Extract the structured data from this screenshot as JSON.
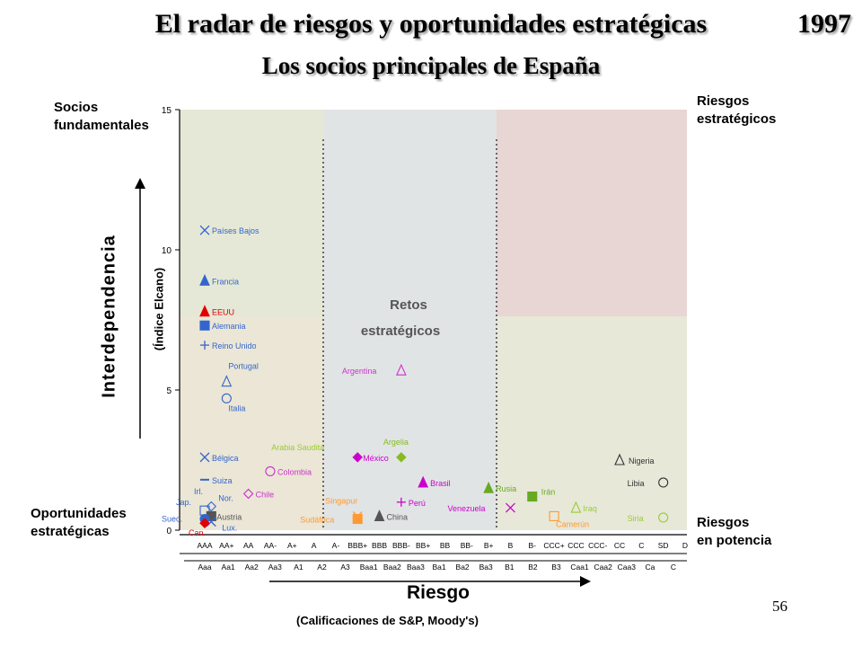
{
  "header": {
    "title": "El radar de riesgos y oportunidades estratégicas",
    "year": "1997",
    "subtitle": "Los socios principales de España"
  },
  "quadrants": {
    "top_left": "Socios\nfundamentales",
    "bottom_left": "Oportunidades\nestratégicas",
    "top_right": "Riesgos\nestratégicos",
    "bottom_right": "Riesgos\nen potencia",
    "center_line1": "Retos",
    "center_line2": "estratégicos"
  },
  "axes": {
    "y_label": "Interdependencia",
    "y_sublabel": "(Índice Elcano)",
    "x_label": "Riesgo",
    "x_sublabel": "(Calificaciones de S&P, Moody's)"
  },
  "page_number": "56",
  "colors": {
    "top_left_bg": "#e5e8d6",
    "bottom_left_bg": "#ebe6d6",
    "center_bg": "#e1e4e5",
    "top_right_bg": "#e8d6d4",
    "bottom_right_bg": "#e7e8d8"
  },
  "chart_data": {
    "type": "scatter",
    "ylim": [
      0,
      15
    ],
    "y_ticks": [
      0,
      5,
      10,
      15
    ],
    "x_ticks_sp": [
      "AAA",
      "AA+",
      "AA",
      "AA-",
      "A+",
      "A",
      "A-",
      "BBB+",
      "BBB",
      "BBB-",
      "BB+",
      "BB",
      "BB-",
      "B+",
      "B",
      "B-",
      "CCC+",
      "CCC",
      "CCC-",
      "CC",
      "C",
      "SD",
      "D"
    ],
    "x_ticks_moodys": [
      "Aaa",
      "Aa1",
      "Aa2",
      "Aa3",
      "A1",
      "A2",
      "A3",
      "Baa1",
      "Baa2",
      "Baa3",
      "Ba1",
      "Ba2",
      "Ba3",
      "B1",
      "B2",
      "B3",
      "Caa1",
      "Caa2",
      "Caa3",
      "Ca",
      "C"
    ],
    "points": [
      {
        "label": "Países Bajos",
        "x": 0,
        "y": 10.7,
        "marker": "x",
        "color": "#3366cc"
      },
      {
        "label": "Francia",
        "x": 0,
        "y": 8.9,
        "marker": "triangle",
        "color": "#3366cc"
      },
      {
        "label": "EEUU",
        "x": 0,
        "y": 7.8,
        "marker": "triangle",
        "color": "#e00000"
      },
      {
        "label": "Alemania",
        "x": 0,
        "y": 7.3,
        "marker": "square",
        "color": "#3366cc"
      },
      {
        "label": "Reino Unido",
        "x": 0,
        "y": 6.6,
        "marker": "plus",
        "color": "#3366cc"
      },
      {
        "label": "Portugal",
        "x": 1,
        "y": 5.3,
        "marker": "triangle-open",
        "color": "#3366cc"
      },
      {
        "label": "Italia",
        "x": 1,
        "y": 4.7,
        "marker": "circle-open",
        "color": "#3366cc"
      },
      {
        "label": "Bélgica",
        "x": 0,
        "y": 2.6,
        "marker": "x",
        "color": "#3366cc"
      },
      {
        "label": "Suiza",
        "x": 0,
        "y": 1.8,
        "marker": "dash",
        "color": "#3366cc"
      },
      {
        "label": "Jap.",
        "x": 0,
        "y": 0.7,
        "marker": "square-open",
        "color": "#3366cc"
      },
      {
        "label": "Irl.",
        "x": 0,
        "y": 0.9,
        "marker": "none",
        "color": "#3366cc"
      },
      {
        "label": "Nor.",
        "x": 0.3,
        "y": 0.85,
        "marker": "diamond-open",
        "color": "#3366cc"
      },
      {
        "label": "Austria",
        "x": 0.3,
        "y": 0.5,
        "marker": "square",
        "color": "#555555"
      },
      {
        "label": "Suec.",
        "x": 0,
        "y": 0.4,
        "marker": "circle",
        "color": "#3366cc"
      },
      {
        "label": "Lux.",
        "x": 0.3,
        "y": 0.3,
        "marker": "x",
        "color": "#3366cc"
      },
      {
        "label": "Can.",
        "x": 0,
        "y": 0.25,
        "marker": "diamond",
        "color": "#e00000"
      },
      {
        "label": "Colombia",
        "x": 3,
        "y": 2.1,
        "marker": "circle-open",
        "color": "#cc33cc"
      },
      {
        "label": "Chile",
        "x": 2,
        "y": 1.3,
        "marker": "diamond-open",
        "color": "#cc33cc"
      },
      {
        "label": "Argentina",
        "x": 9,
        "y": 5.7,
        "marker": "triangle-open",
        "color": "#cc33cc"
      },
      {
        "label": "Arabia Saudita",
        "x": 7,
        "y": 2.6,
        "marker": "none",
        "color": "#99cc33"
      },
      {
        "label": "México",
        "x": 7,
        "y": 2.6,
        "marker": "diamond",
        "color": "#cc00cc"
      },
      {
        "label": "Argelia",
        "x": 9,
        "y": 2.6,
        "marker": "diamond",
        "color": "#88bb22"
      },
      {
        "label": "Brasil",
        "x": 10,
        "y": 1.7,
        "marker": "triangle",
        "color": "#cc00cc"
      },
      {
        "label": "Perú",
        "x": 9,
        "y": 1.0,
        "marker": "plus",
        "color": "#cc00cc"
      },
      {
        "label": "Singapur",
        "x": 7,
        "y": 0.5,
        "marker": "x",
        "color": "#ff9933"
      },
      {
        "label": "Sudáfrica",
        "x": 7,
        "y": 0.4,
        "marker": "square",
        "color": "#ff9933"
      },
      {
        "label": "China",
        "x": 8,
        "y": 0.5,
        "marker": "triangle",
        "color": "#555555"
      },
      {
        "label": "Rusia",
        "x": 13,
        "y": 1.5,
        "marker": "triangle",
        "color": "#66aa22"
      },
      {
        "label": "Irán",
        "x": 15,
        "y": 1.2,
        "marker": "square",
        "color": "#66aa22"
      },
      {
        "label": "Venezuela",
        "x": 14,
        "y": 0.8,
        "marker": "x",
        "color": "#cc00cc"
      },
      {
        "label": "Iraq",
        "x": 17,
        "y": 0.8,
        "marker": "triangle-open",
        "color": "#99cc33"
      },
      {
        "label": "Camerún",
        "x": 16,
        "y": 0.5,
        "marker": "square-open",
        "color": "#ff9933"
      },
      {
        "label": "Nigeria",
        "x": 19,
        "y": 2.5,
        "marker": "triangle-open",
        "color": "#333333"
      },
      {
        "label": "Libia",
        "x": 21,
        "y": 1.7,
        "marker": "circle-open",
        "color": "#333333"
      },
      {
        "label": "Siria",
        "x": 21,
        "y": 0.45,
        "marker": "circle-open",
        "color": "#99cc33"
      }
    ]
  }
}
